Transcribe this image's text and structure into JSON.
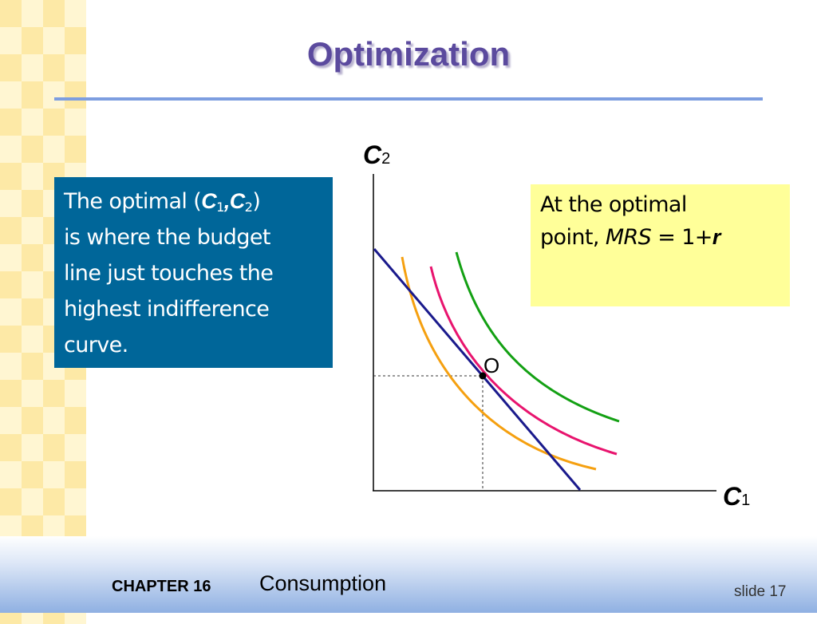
{
  "slide": {
    "title": "Optimization",
    "bluebox": {
      "t1": "The optimal (",
      "v1": "C",
      "s1": "1",
      "comma": ",",
      "v2": "C",
      "s2": "2",
      "t2": ")",
      "line2": "is where the budget",
      "line3": "line just touches the",
      "line4": "highest indifference",
      "line5": "curve."
    },
    "yellowbox": {
      "line1": "At the optimal",
      "t1": "point, ",
      "mrs": "MRS",
      "eq": " = 1+",
      "r": "r"
    },
    "footer": {
      "chapter": "CHAPTER 16",
      "topic": "Consumption",
      "slide_no": "slide 17"
    }
  },
  "chart_data": {
    "type": "diagram",
    "x_axis": {
      "var": "C",
      "sub": "1"
    },
    "y_axis": {
      "var": "C",
      "sub": "2"
    },
    "point_label": "O",
    "colors": {
      "budget_line": "#1a1a8c",
      "ic_low": "#f5a010",
      "ic_mid": "#e8146e",
      "ic_high": "#13a013",
      "guide": "#333333"
    },
    "series": [
      {
        "kind": "budget_line"
      },
      {
        "kind": "indifference_curve",
        "level": "low"
      },
      {
        "kind": "indifference_curve",
        "level": "mid"
      },
      {
        "kind": "indifference_curve",
        "level": "high"
      }
    ]
  }
}
